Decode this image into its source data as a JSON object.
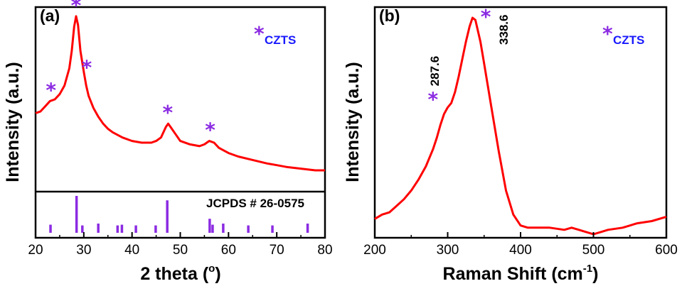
{
  "chart_data": [
    {
      "type": "line",
      "panel_label": "(a)",
      "xlabel": "2 theta (",
      "xlabel_sup": "o",
      "xlabel_close": ")",
      "ylabel": "Intensity (a.u.)",
      "xlim": [
        20,
        80
      ],
      "xticks": [
        "20",
        "30",
        "40",
        "50",
        "60",
        "70",
        "80"
      ],
      "grid": false,
      "line_color": "#ff0000",
      "star_color": "#8b2be2",
      "label_color": "#1a1aff",
      "legend": {
        "symbol": "*",
        "text": "CZTS",
        "placement": "top-right"
      },
      "series": [
        {
          "x": [
            20,
            21,
            22,
            23,
            24,
            25,
            26,
            27,
            27.5,
            28,
            28.4,
            28.8,
            29.3,
            30,
            30.5,
            31,
            32,
            33,
            34,
            35,
            36,
            38,
            40,
            42,
            44,
            45,
            46,
            47,
            47.5,
            48,
            49,
            50,
            52,
            54,
            55,
            56,
            57,
            58,
            60,
            62,
            65,
            68,
            70,
            72,
            75,
            78,
            80
          ],
          "y": [
            0.42,
            0.43,
            0.46,
            0.49,
            0.5,
            0.53,
            0.58,
            0.68,
            0.78,
            0.92,
            0.98,
            0.93,
            0.78,
            0.66,
            0.58,
            0.52,
            0.45,
            0.4,
            0.36,
            0.33,
            0.31,
            0.28,
            0.26,
            0.25,
            0.25,
            0.26,
            0.28,
            0.34,
            0.36,
            0.34,
            0.3,
            0.26,
            0.24,
            0.23,
            0.24,
            0.26,
            0.25,
            0.22,
            0.19,
            0.17,
            0.15,
            0.13,
            0.12,
            0.11,
            0.1,
            0.09,
            0.09
          ]
        }
      ],
      "peak_markers": [
        {
          "x": 23.2,
          "y": 0.49
        },
        {
          "x": 28.4,
          "y": 0.98
        },
        {
          "x": 30.6,
          "y": 0.62
        },
        {
          "x": 47.4,
          "y": 0.36
        },
        {
          "x": 56.2,
          "y": 0.26
        }
      ],
      "reference": {
        "label": "JCPDS # 26-0575",
        "bar_color": "#8b2be2",
        "bars": [
          {
            "x": 23.1,
            "h": 0.22
          },
          {
            "x": 28.5,
            "h": 1.0
          },
          {
            "x": 29.7,
            "h": 0.2
          },
          {
            "x": 33.0,
            "h": 0.25
          },
          {
            "x": 37.0,
            "h": 0.2
          },
          {
            "x": 37.9,
            "h": 0.22
          },
          {
            "x": 40.8,
            "h": 0.2
          },
          {
            "x": 44.9,
            "h": 0.2
          },
          {
            "x": 47.3,
            "h": 0.88
          },
          {
            "x": 56.1,
            "h": 0.38
          },
          {
            "x": 56.7,
            "h": 0.22
          },
          {
            "x": 58.9,
            "h": 0.25
          },
          {
            "x": 64.1,
            "h": 0.2
          },
          {
            "x": 69.1,
            "h": 0.2
          },
          {
            "x": 76.4,
            "h": 0.25
          }
        ]
      }
    },
    {
      "type": "line",
      "panel_label": "(b)",
      "xlabel": "Raman Shift (cm",
      "xlabel_sup": "-1",
      "xlabel_close": ")",
      "ylabel": "Intensity (a.u.)",
      "xlim": [
        200,
        600
      ],
      "xticks": [
        "200",
        "300",
        "400",
        "500",
        "600"
      ],
      "grid": false,
      "line_color": "#ff0000",
      "star_color": "#8b2be2",
      "label_color": "#1a1aff",
      "legend": {
        "symbol": "*",
        "text": "CZTS",
        "placement": "top-right"
      },
      "series": [
        {
          "x": [
            200,
            210,
            220,
            230,
            240,
            250,
            260,
            270,
            280,
            285,
            290,
            295,
            300,
            305,
            310,
            315,
            320,
            325,
            330,
            334,
            338,
            345,
            350,
            360,
            370,
            380,
            390,
            400,
            410,
            420,
            440,
            460,
            470,
            480,
            490,
            500,
            510,
            520,
            540,
            560,
            580,
            600
          ],
          "y": [
            0.07,
            0.09,
            0.1,
            0.13,
            0.16,
            0.2,
            0.25,
            0.31,
            0.39,
            0.44,
            0.5,
            0.55,
            0.58,
            0.6,
            0.65,
            0.72,
            0.8,
            0.88,
            0.95,
            0.99,
            0.98,
            0.88,
            0.78,
            0.58,
            0.38,
            0.2,
            0.09,
            0.04,
            0.03,
            0.03,
            0.03,
            0.02,
            0.03,
            0.02,
            0.01,
            0.0,
            0.01,
            0.02,
            0.03,
            0.05,
            0.06,
            0.08
          ]
        }
      ],
      "peaks": [
        {
          "label": "287.6",
          "x": 287.6,
          "y": 0.58
        },
        {
          "label": "338.6",
          "x": 338.6,
          "y": 0.99
        }
      ]
    }
  ]
}
